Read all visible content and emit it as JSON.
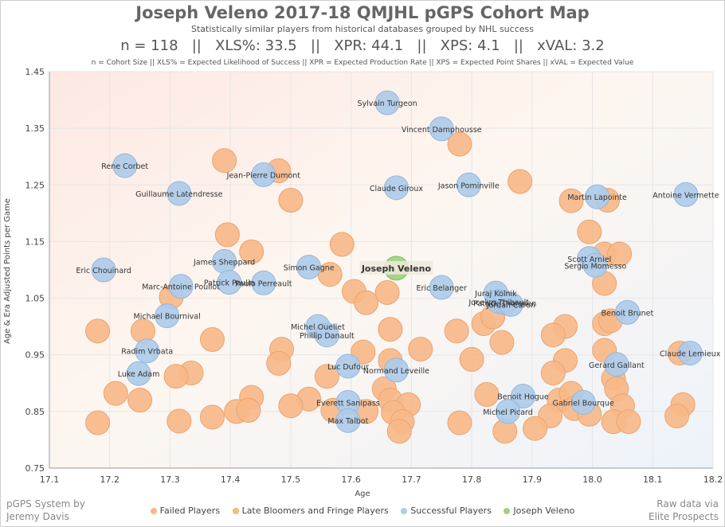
{
  "chart_data": {
    "type": "scatter",
    "title": "Joseph Veleno 2017-18 QMJHL pGPS Cohort Map",
    "subtitle": "Statistically similar players from historical databases grouped by NHL success",
    "stats_line": "n = 118   ||   XLS%: 33.5   ||   XPR: 44.1   ||   XPS: 4.1   ||   xVAL: 3.2",
    "definitions": "n = Cohort Size || XLS% = Expected Likelihood of Success || XPR = Expected Production Rate || XPS = Expected Point Shares || xVAL = Expected Value",
    "xlabel": "Age",
    "ylabel": "Age & Era Adjusted Points per Game",
    "xlim": [
      17.1,
      18.2
    ],
    "ylim": [
      0.75,
      1.45
    ],
    "xticks": [
      "17.1",
      "17.2",
      "17.3",
      "17.4",
      "17.5",
      "17.6",
      "17.7",
      "17.8",
      "17.9",
      "18.0",
      "18.1",
      "18.2"
    ],
    "yticks": [
      "0.75",
      "0.85",
      "0.95",
      "1.05",
      "1.15",
      "1.25",
      "1.35",
      "1.45"
    ],
    "footer_left": [
      "pGPS System by",
      "Jeremy Davis"
    ],
    "footer_right": [
      "Raw data via",
      "Elite Prospects"
    ],
    "colors": {
      "failed": "#f7b889",
      "late": "#f5c07a",
      "success": "#aecbe9",
      "veleno": "#9fd07f"
    },
    "legend": [
      {
        "key": "failed",
        "label": "Failed Players"
      },
      {
        "key": "late",
        "label": "Late Bloomers and Fringe Players"
      },
      {
        "key": "success",
        "label": "Successful Players"
      },
      {
        "key": "veleno",
        "label": "Joseph Veleno"
      }
    ],
    "series": [
      {
        "name": "Joseph Veleno",
        "key": "veleno",
        "points": [
          {
            "x": 17.675,
            "y": 1.103,
            "label": "Joseph Veleno"
          }
        ]
      },
      {
        "name": "Successful Players",
        "key": "success",
        "points": [
          {
            "x": 17.66,
            "y": 1.395,
            "label": "Sylvain Turgeon"
          },
          {
            "x": 17.75,
            "y": 1.349,
            "label": "Vincent Damphousse"
          },
          {
            "x": 17.225,
            "y": 1.284,
            "label": "Rene Corbet"
          },
          {
            "x": 17.455,
            "y": 1.268,
            "label": "Jean-Pierre Dumont"
          },
          {
            "x": 17.675,
            "y": 1.245,
            "label": "Claude Giroux"
          },
          {
            "x": 17.795,
            "y": 1.25,
            "label": "Jason Pominville"
          },
          {
            "x": 17.315,
            "y": 1.235,
            "label": "Guillaume Latendresse"
          },
          {
            "x": 18.008,
            "y": 1.229,
            "label": "Martin Lapointe"
          },
          {
            "x": 18.155,
            "y": 1.233,
            "label": "Antoine Vermette"
          },
          {
            "x": 17.995,
            "y": 1.12,
            "label": "Scott Arniel"
          },
          {
            "x": 18.005,
            "y": 1.108,
            "label": "Sergio Momesso"
          },
          {
            "x": 17.39,
            "y": 1.115,
            "label": "James Sheppard"
          },
          {
            "x": 17.53,
            "y": 1.105,
            "label": "Simon Gagne"
          },
          {
            "x": 17.19,
            "y": 1.1,
            "label": "Eric Chouinard"
          },
          {
            "x": 17.398,
            "y": 1.078,
            "label": "Patrick Poulin"
          },
          {
            "x": 17.455,
            "y": 1.077,
            "label": "Paulo Perreault"
          },
          {
            "x": 17.318,
            "y": 1.071,
            "label": "Marc-Antoine Pouliot"
          },
          {
            "x": 17.75,
            "y": 1.069,
            "label": "Eric Belanger"
          },
          {
            "x": 17.84,
            "y": 1.059,
            "label": "Juraj Kolnik"
          },
          {
            "x": 17.845,
            "y": 1.044,
            "label": "Jocelyn Thibault"
          },
          {
            "x": 17.855,
            "y": 1.042,
            "label": "Patrick Thoresen"
          },
          {
            "x": 17.865,
            "y": 1.039,
            "label": "Jordan Caron"
          },
          {
            "x": 18.058,
            "y": 1.025,
            "label": "Benoit Brunet"
          },
          {
            "x": 17.295,
            "y": 1.019,
            "label": "Michael Bournival"
          },
          {
            "x": 17.545,
            "y": 1.0,
            "label": "Michel Ouellet"
          },
          {
            "x": 17.56,
            "y": 0.985,
            "label": "Phillip Danault"
          },
          {
            "x": 17.262,
            "y": 0.957,
            "label": "Radim Vrbata"
          },
          {
            "x": 18.162,
            "y": 0.953,
            "label": "Claude Lemieux"
          },
          {
            "x": 18.04,
            "y": 0.933,
            "label": "Gerard Gallant"
          },
          {
            "x": 17.595,
            "y": 0.93,
            "label": "Luc Dufour"
          },
          {
            "x": 17.675,
            "y": 0.923,
            "label": "Normand Leveille"
          },
          {
            "x": 17.248,
            "y": 0.917,
            "label": "Luke Adam"
          },
          {
            "x": 17.885,
            "y": 0.877,
            "label": "Benoit Hogue"
          },
          {
            "x": 17.595,
            "y": 0.866,
            "label": "Everett Sanipass"
          },
          {
            "x": 17.985,
            "y": 0.866,
            "label": "Gabriel Bourque"
          },
          {
            "x": 17.86,
            "y": 0.85,
            "label": "Michel Picard"
          },
          {
            "x": 17.595,
            "y": 0.834,
            "label": "Max Talbot"
          }
        ]
      },
      {
        "name": "Failed Players",
        "key": "failed",
        "points": [
          {
            "x": 17.39,
            "y": 1.293
          },
          {
            "x": 17.48,
            "y": 1.275
          },
          {
            "x": 17.78,
            "y": 1.322
          },
          {
            "x": 17.88,
            "y": 1.256
          },
          {
            "x": 17.5,
            "y": 1.223
          },
          {
            "x": 17.965,
            "y": 1.222
          },
          {
            "x": 18.025,
            "y": 1.223
          },
          {
            "x": 17.395,
            "y": 1.162
          },
          {
            "x": 17.585,
            "y": 1.145
          },
          {
            "x": 17.435,
            "y": 1.132
          },
          {
            "x": 17.995,
            "y": 1.167
          },
          {
            "x": 18.02,
            "y": 1.128
          },
          {
            "x": 18.045,
            "y": 1.128
          },
          {
            "x": 17.565,
            "y": 1.092
          },
          {
            "x": 17.605,
            "y": 1.062
          },
          {
            "x": 17.625,
            "y": 1.042
          },
          {
            "x": 17.66,
            "y": 1.06
          },
          {
            "x": 18.02,
            "y": 1.076
          },
          {
            "x": 17.302,
            "y": 1.052
          },
          {
            "x": 17.82,
            "y": 1.005
          },
          {
            "x": 17.835,
            "y": 1.017
          },
          {
            "x": 17.775,
            "y": 0.992
          },
          {
            "x": 17.665,
            "y": 0.995
          },
          {
            "x": 17.18,
            "y": 0.992
          },
          {
            "x": 17.255,
            "y": 0.992
          },
          {
            "x": 17.37,
            "y": 0.977
          },
          {
            "x": 17.955,
            "y": 1.0
          },
          {
            "x": 17.935,
            "y": 0.985
          },
          {
            "x": 18.02,
            "y": 1.005
          },
          {
            "x": 18.03,
            "y": 1.01
          },
          {
            "x": 17.485,
            "y": 0.96
          },
          {
            "x": 17.48,
            "y": 0.935
          },
          {
            "x": 17.62,
            "y": 0.955
          },
          {
            "x": 17.665,
            "y": 0.94
          },
          {
            "x": 17.715,
            "y": 0.96
          },
          {
            "x": 17.8,
            "y": 0.942
          },
          {
            "x": 17.85,
            "y": 0.972
          },
          {
            "x": 17.955,
            "y": 0.94
          },
          {
            "x": 18.02,
            "y": 0.958
          },
          {
            "x": 18.145,
            "y": 0.953
          },
          {
            "x": 17.335,
            "y": 0.918
          },
          {
            "x": 17.31,
            "y": 0.912
          },
          {
            "x": 17.56,
            "y": 0.912
          },
          {
            "x": 17.935,
            "y": 0.918
          },
          {
            "x": 18.035,
            "y": 0.908
          },
          {
            "x": 18.04,
            "y": 0.89
          },
          {
            "x": 17.21,
            "y": 0.882
          },
          {
            "x": 17.25,
            "y": 0.87
          },
          {
            "x": 17.435,
            "y": 0.875
          },
          {
            "x": 17.53,
            "y": 0.872
          },
          {
            "x": 17.655,
            "y": 0.89
          },
          {
            "x": 17.665,
            "y": 0.87
          },
          {
            "x": 17.695,
            "y": 0.862
          },
          {
            "x": 17.825,
            "y": 0.88
          },
          {
            "x": 17.945,
            "y": 0.87
          },
          {
            "x": 17.965,
            "y": 0.882
          },
          {
            "x": 17.5,
            "y": 0.86
          },
          {
            "x": 17.57,
            "y": 0.852
          },
          {
            "x": 17.41,
            "y": 0.85
          },
          {
            "x": 17.43,
            "y": 0.852
          },
          {
            "x": 17.625,
            "y": 0.85
          },
          {
            "x": 17.67,
            "y": 0.848
          },
          {
            "x": 17.93,
            "y": 0.842
          },
          {
            "x": 17.97,
            "y": 0.855
          },
          {
            "x": 17.995,
            "y": 0.845
          },
          {
            "x": 18.05,
            "y": 0.86
          },
          {
            "x": 18.15,
            "y": 0.862
          },
          {
            "x": 17.18,
            "y": 0.83
          },
          {
            "x": 17.315,
            "y": 0.833
          },
          {
            "x": 17.37,
            "y": 0.84
          },
          {
            "x": 17.685,
            "y": 0.832
          },
          {
            "x": 17.78,
            "y": 0.83
          },
          {
            "x": 17.855,
            "y": 0.815
          },
          {
            "x": 17.905,
            "y": 0.82
          },
          {
            "x": 18.035,
            "y": 0.832
          },
          {
            "x": 18.06,
            "y": 0.832
          },
          {
            "x": 18.14,
            "y": 0.842
          },
          {
            "x": 17.68,
            "y": 0.815
          }
        ]
      }
    ]
  }
}
